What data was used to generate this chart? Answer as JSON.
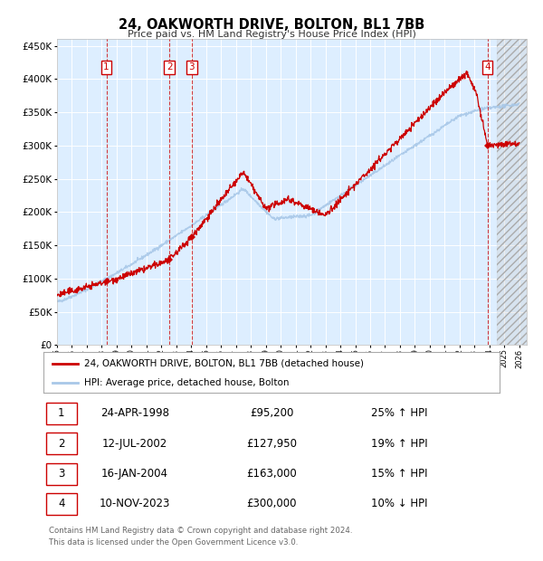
{
  "title": "24, OAKWORTH DRIVE, BOLTON, BL1 7BB",
  "subtitle": "Price paid vs. HM Land Registry's House Price Index (HPI)",
  "hpi_color": "#a8c8e8",
  "price_color": "#cc0000",
  "plot_bg": "#ddeeff",
  "ylim": [
    0,
    460000
  ],
  "yticks": [
    0,
    50000,
    100000,
    150000,
    200000,
    250000,
    300000,
    350000,
    400000,
    450000
  ],
  "transactions": [
    {
      "num": 1,
      "date": "24-APR-1998",
      "price": 95200,
      "year": 1998.31,
      "pct": "25%",
      "dir": "↑"
    },
    {
      "num": 2,
      "date": "12-JUL-2002",
      "price": 127950,
      "year": 2002.53,
      "pct": "19%",
      "dir": "↑"
    },
    {
      "num": 3,
      "date": "16-JAN-2004",
      "price": 163000,
      "year": 2004.04,
      "pct": "15%",
      "dir": "↑"
    },
    {
      "num": 4,
      "date": "10-NOV-2023",
      "price": 300000,
      "year": 2023.86,
      "pct": "10%",
      "dir": "↓"
    }
  ],
  "legend_line1": "24, OAKWORTH DRIVE, BOLTON, BL1 7BB (detached house)",
  "legend_line2": "HPI: Average price, detached house, Bolton",
  "footer1": "Contains HM Land Registry data © Crown copyright and database right 2024.",
  "footer2": "This data is licensed under the Open Government Licence v3.0.",
  "xmin": 1995,
  "xmax": 2026.5,
  "hatch_start": 2024.5
}
